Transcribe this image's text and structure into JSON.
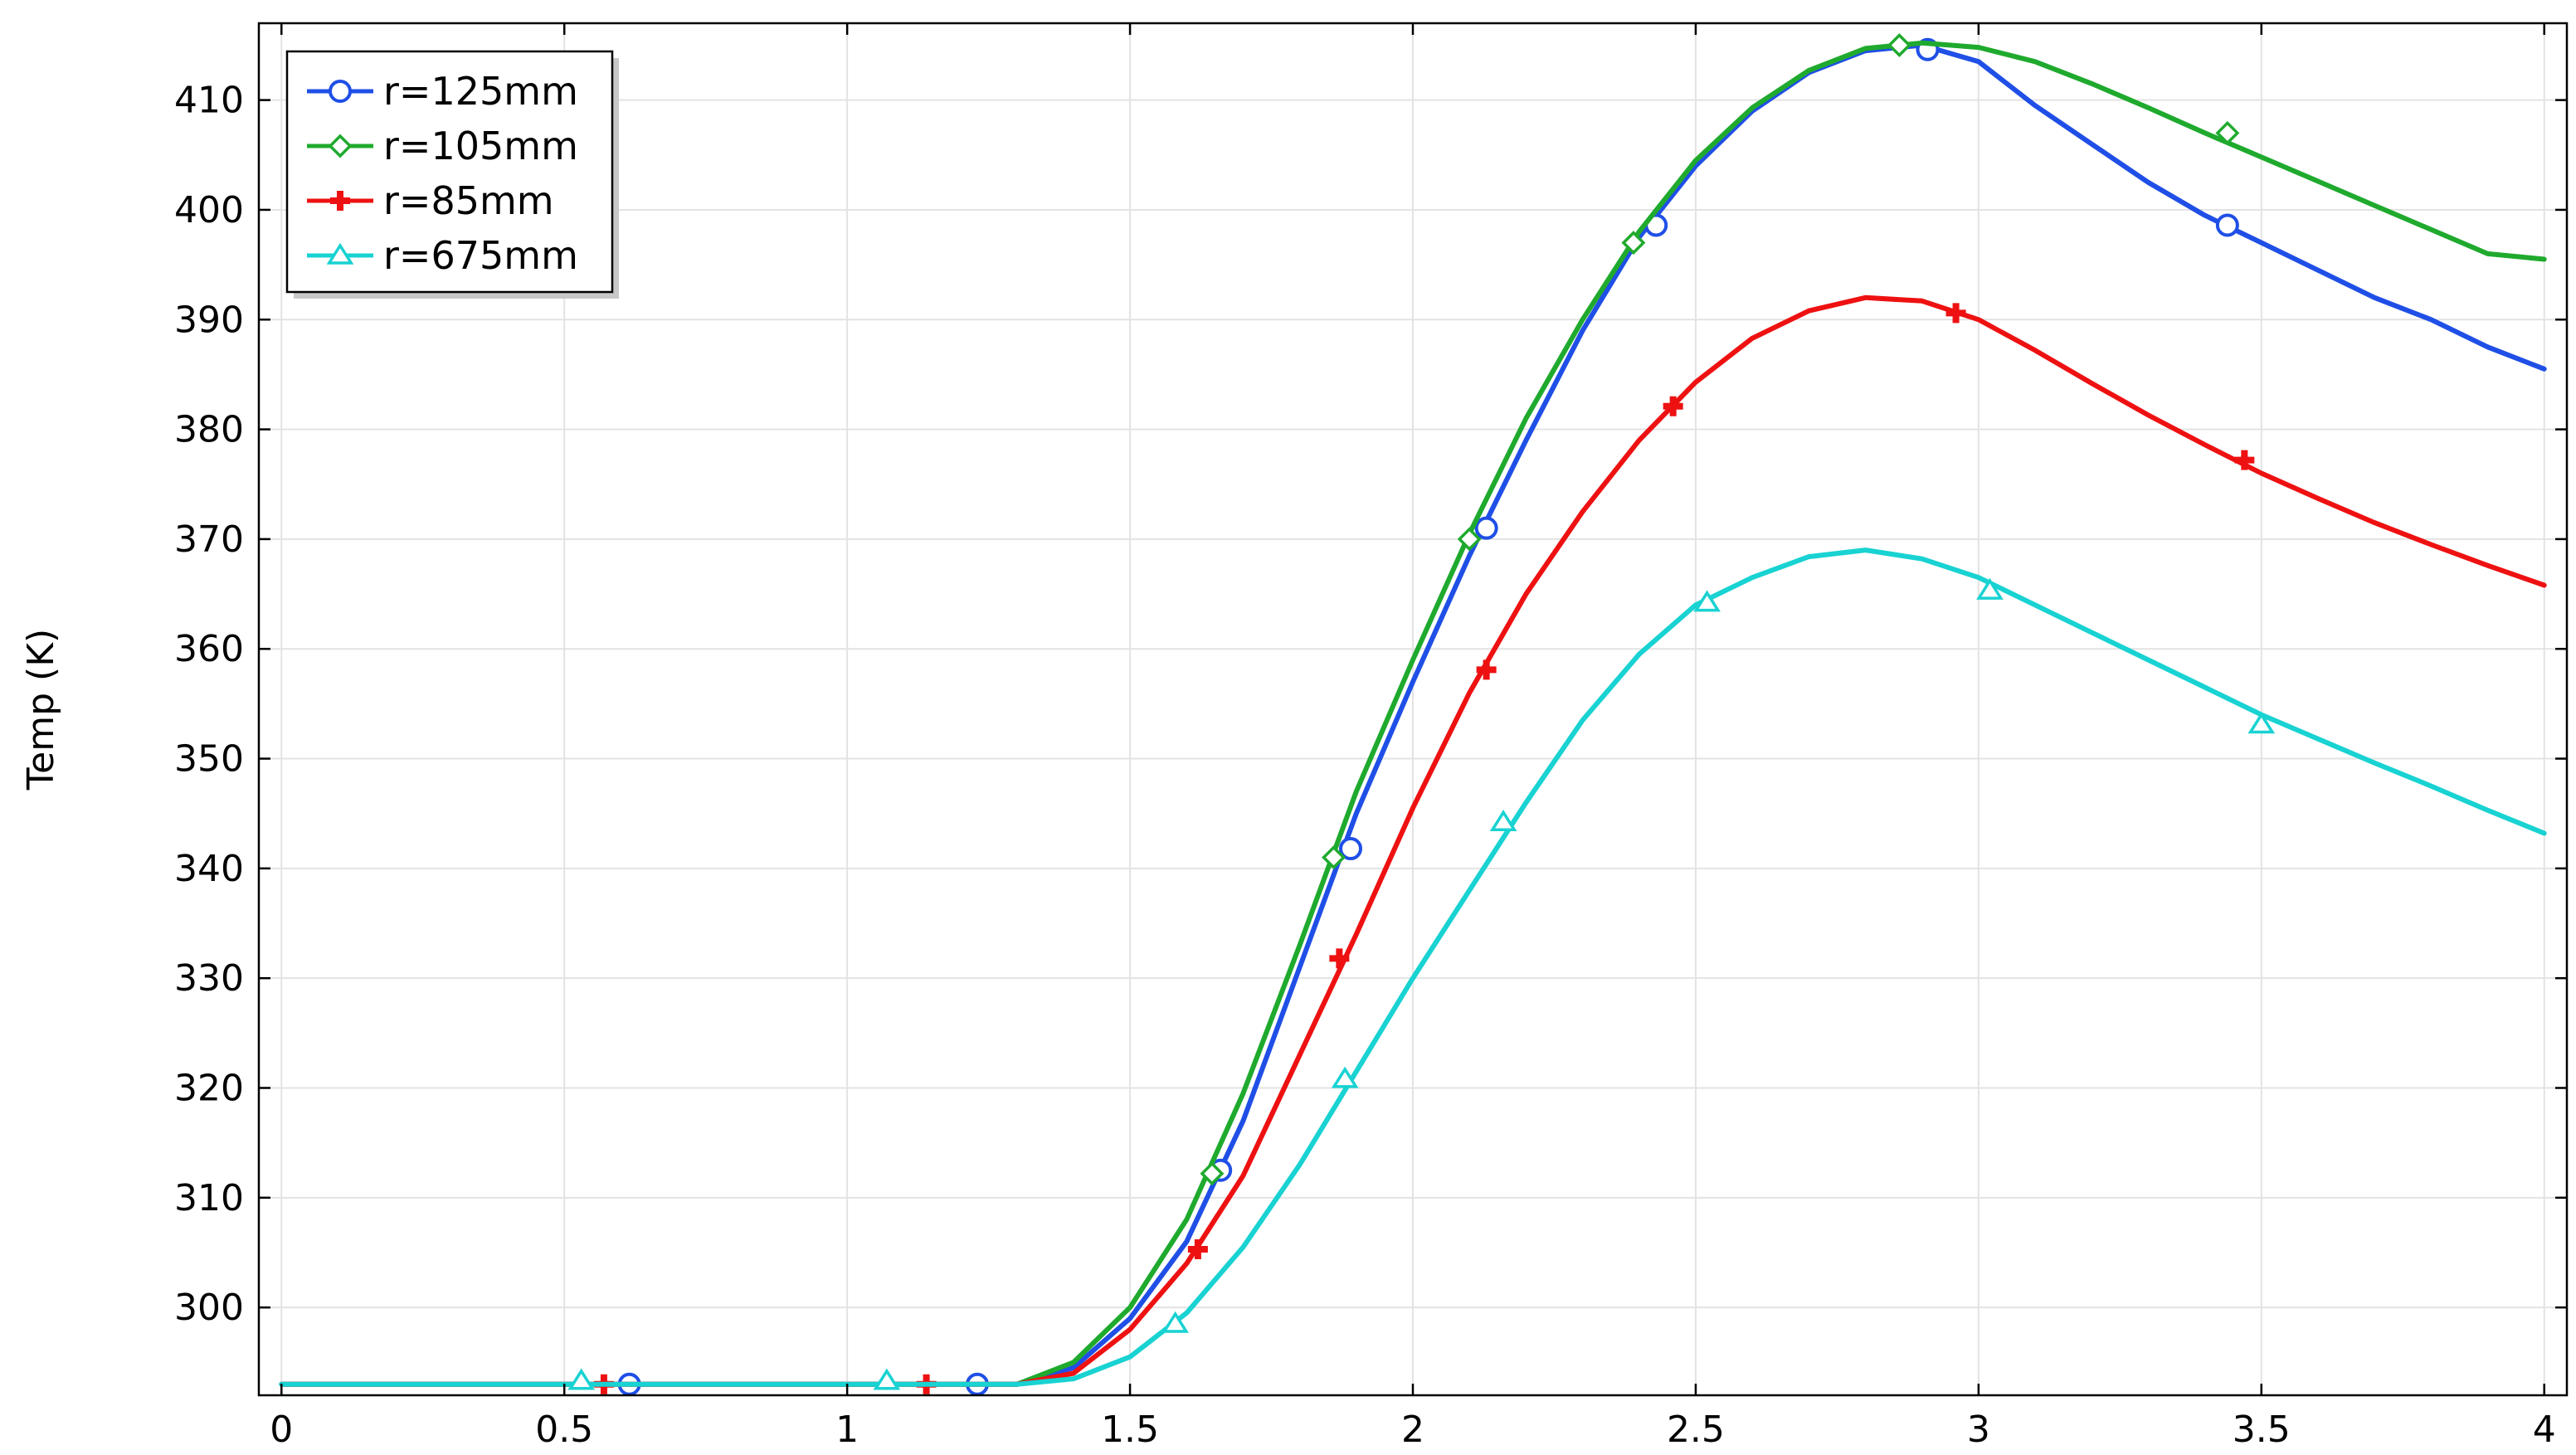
{
  "chart_data": {
    "type": "line",
    "title": "",
    "xlabel": "",
    "ylabel": "Temp (K)",
    "xlim": [
      -0.04,
      4.04
    ],
    "ylim": [
      292,
      417
    ],
    "x_ticks": [
      0,
      0.5,
      1,
      1.5,
      2,
      2.5,
      3,
      3.5,
      4
    ],
    "x_tick_labels": [
      "0",
      "0.5",
      "1",
      "1.5",
      "2",
      "2.5",
      "3",
      "3.5",
      "4"
    ],
    "y_ticks": [
      300,
      310,
      320,
      330,
      340,
      350,
      360,
      370,
      380,
      390,
      400,
      410
    ],
    "y_tick_labels": [
      "300",
      "310",
      "320",
      "330",
      "340",
      "350",
      "360",
      "370",
      "380",
      "390",
      "400",
      "410"
    ],
    "grid": true,
    "legend_position": "top-left",
    "x": [
      0,
      0.1,
      0.2,
      0.3,
      0.4,
      0.5,
      0.6,
      0.7,
      0.8,
      0.9,
      1.0,
      1.1,
      1.2,
      1.3,
      1.4,
      1.5,
      1.6,
      1.7,
      1.8,
      1.9,
      2.0,
      2.1,
      2.2,
      2.3,
      2.4,
      2.5,
      2.6,
      2.7,
      2.8,
      2.9,
      3.0,
      3.1,
      3.2,
      3.3,
      3.4,
      3.5,
      3.6,
      3.7,
      3.8,
      3.9,
      4.0
    ],
    "series": [
      {
        "name": "r=125mm",
        "color": "#1f4fe6",
        "marker": "circle",
        "values": [
          293,
          293,
          293,
          293,
          293,
          293,
          293,
          293,
          293,
          293,
          293,
          293,
          293,
          293,
          294.5,
          299,
          306,
          317,
          331,
          345,
          357,
          368.5,
          379,
          389,
          397.5,
          404,
          409,
          412.5,
          414.5,
          415,
          413.5,
          409.5,
          406,
          402.5,
          399.5,
          397,
          394.5,
          392,
          390,
          387.5,
          385.5
        ],
        "marker_x": [
          0.615,
          1.23,
          1.66,
          1.89,
          2.13,
          2.43,
          2.91,
          3.44
        ],
        "marker_y": [
          293,
          293,
          312.5,
          341.8,
          371,
          398.6,
          414.6,
          398.6
        ]
      },
      {
        "name": "r=105mm",
        "color": "#1faa2e",
        "marker": "diamond",
        "values": [
          293,
          293,
          293,
          293,
          293,
          293,
          293,
          293,
          293,
          293,
          293,
          293,
          293,
          293,
          295,
          300,
          308,
          319.5,
          333,
          347,
          359,
          370.5,
          381,
          390,
          398,
          404.5,
          409.3,
          412.7,
          414.7,
          415.2,
          414.8,
          413.5,
          411.5,
          409.3,
          407,
          404.8,
          402.6,
          400.4,
          398.2,
          396,
          395.5
        ],
        "marker_x": [
          1.645,
          1.86,
          2.1,
          2.39,
          2.86,
          3.44
        ],
        "marker_y": [
          312.2,
          341,
          370,
          397,
          415,
          407
        ]
      },
      {
        "name": "r=85mm",
        "color": "#ee1111",
        "marker": "plus",
        "values": [
          293,
          293,
          293,
          293,
          293,
          293,
          293,
          293,
          293,
          293,
          293,
          293,
          293,
          293,
          294,
          298,
          304,
          312,
          323,
          334,
          345.5,
          356,
          365,
          372.5,
          379,
          384.3,
          388.3,
          390.8,
          392,
          391.7,
          390,
          387.2,
          384.2,
          381.3,
          378.6,
          376,
          373.7,
          371.5,
          369.5,
          367.6,
          365.8
        ],
        "marker_x": [
          0.57,
          1.14,
          1.62,
          1.87,
          2.13,
          2.46,
          2.96,
          3.47
        ],
        "marker_y": [
          293,
          293,
          305.3,
          331.8,
          358.1,
          382.1,
          390.6,
          377.2
        ]
      },
      {
        "name": "r=675mm",
        "color": "#19d2d2",
        "marker": "triangle",
        "values": [
          293,
          293,
          293,
          293,
          293,
          293,
          293,
          293,
          293,
          293,
          293,
          293,
          293,
          293,
          293.5,
          295.5,
          299.5,
          305.5,
          313,
          321.5,
          330,
          338,
          346,
          353.5,
          359.5,
          364,
          366.5,
          368.4,
          369,
          368.2,
          366.5,
          364,
          361.5,
          359,
          356.5,
          354,
          351.8,
          349.6,
          347.5,
          345.3,
          343.2
        ],
        "marker_x": [
          0.53,
          1.07,
          1.58,
          1.88,
          2.16,
          2.52,
          3.02,
          3.5
        ],
        "marker_y": [
          293.3,
          293.3,
          298.5,
          320.8,
          344.2,
          364.2,
          365.3,
          353.1
        ]
      }
    ]
  }
}
